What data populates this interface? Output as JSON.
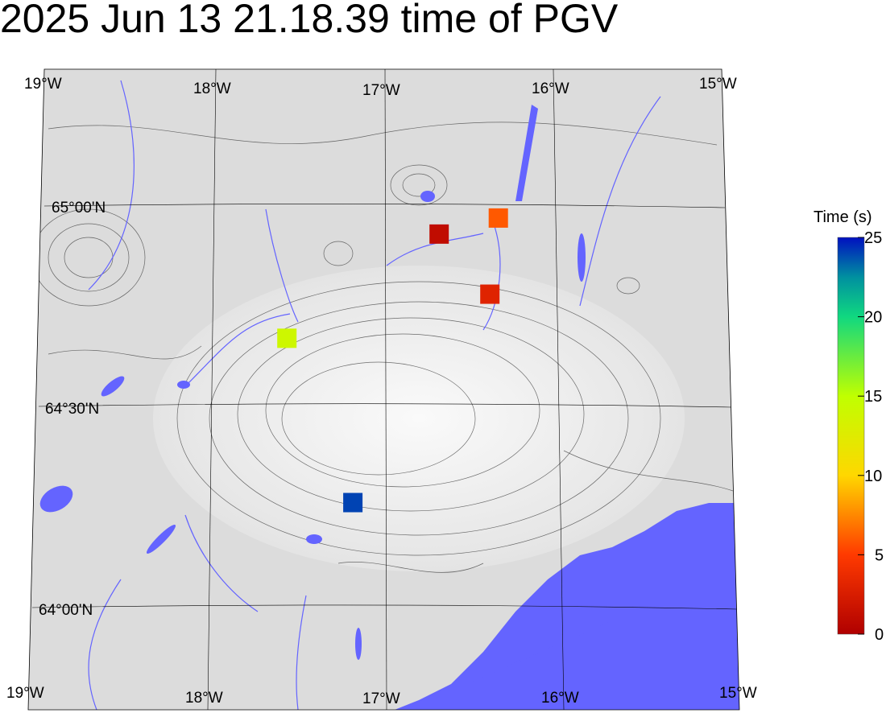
{
  "title": "2025 Jun 13 21.18.39 time of PGV",
  "map": {
    "lon_labels_top": [
      "19°W",
      "18°W",
      "17°W",
      "16°W",
      "15°W"
    ],
    "lon_labels_bottom": [
      "19°W",
      "18°W",
      "17°W",
      "16°W",
      "15°W"
    ],
    "lat_labels": [
      "65°00'N",
      "64°30'N",
      "64°00'N"
    ],
    "colors": {
      "land": "#e2e2e2",
      "water": "#6464ff",
      "contour": "#333333",
      "grid": "#000000"
    }
  },
  "stations": [
    {
      "lon": -16.68,
      "lat": 64.93,
      "time_s": 1
    },
    {
      "lon": -16.33,
      "lat": 64.97,
      "time_s": 6
    },
    {
      "lon": -16.38,
      "lat": 64.78,
      "time_s": 3
    },
    {
      "lon": -17.58,
      "lat": 64.67,
      "time_s": 14
    },
    {
      "lon": -17.19,
      "lat": 64.26,
      "time_s": 24
    }
  ],
  "colorbar": {
    "label": "Time (s)",
    "min": 0,
    "max": 25,
    "ticks": [
      "0",
      "5",
      "10",
      "15",
      "20",
      "25"
    ],
    "colormap": [
      "#b00000",
      "#ff3a00",
      "#ffd700",
      "#c0ff00",
      "#10d880",
      "#0090a0",
      "#0010c0"
    ]
  }
}
